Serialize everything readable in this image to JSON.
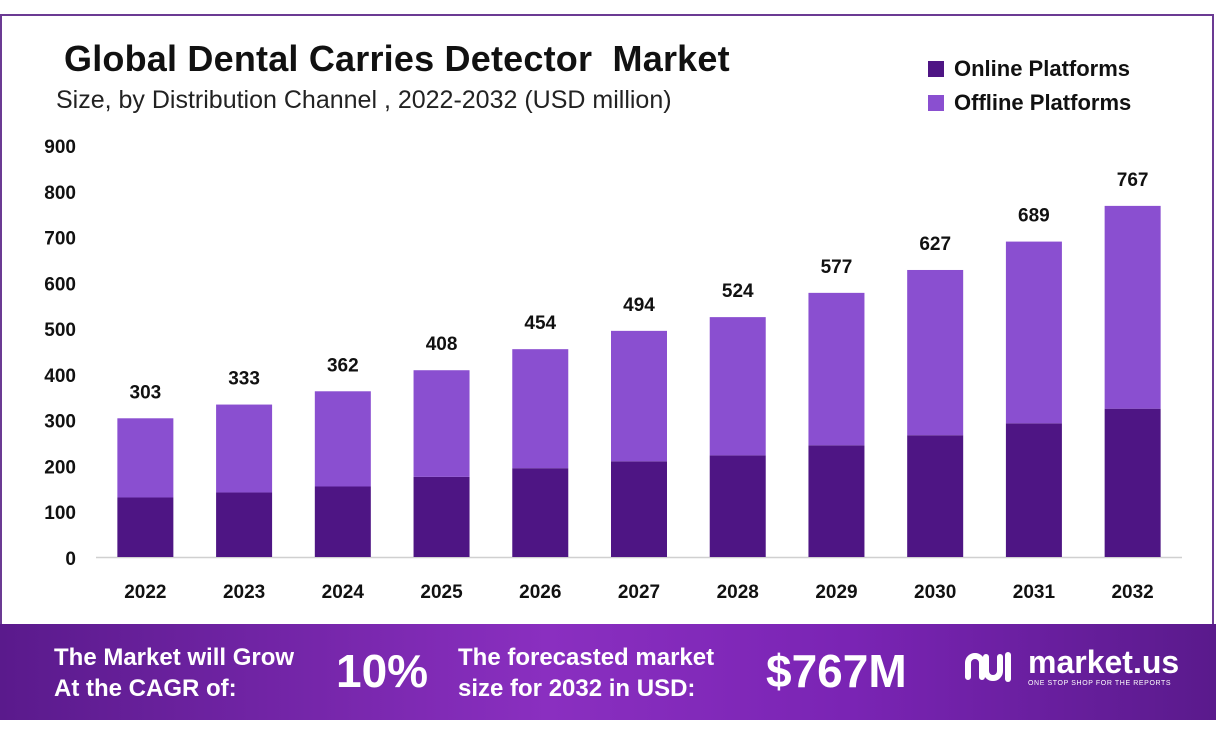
{
  "title": "Global Dental Carries Detector  Market",
  "subtitle": "Size, by Distribution Channel , 2022-2032 (USD million)",
  "colors": {
    "online": "#4e1584",
    "offline": "#8a4fd0",
    "frame": "#6b3a93"
  },
  "legend": [
    {
      "label": "Online Platforms",
      "color": "#4e1584"
    },
    {
      "label": "Offline Platforms",
      "color": "#8a4fd0"
    }
  ],
  "chart_data": {
    "type": "bar",
    "stacked": true,
    "title": "Global Dental Carries Detector  Market",
    "subtitle": "Size, by Distribution Channel , 2022-2032 (USD million)",
    "xlabel": "",
    "ylabel": "",
    "ylim": [
      0,
      900
    ],
    "yticks": [
      0,
      100,
      200,
      300,
      400,
      500,
      600,
      700,
      800,
      900
    ],
    "grid": false,
    "legend_position": "top-right",
    "categories": [
      "2022",
      "2023",
      "2024",
      "2025",
      "2026",
      "2027",
      "2028",
      "2029",
      "2030",
      "2031",
      "2032"
    ],
    "series": [
      {
        "name": "Online Platforms",
        "values": [
          130,
          141,
          154,
          175,
          194,
          209,
          222,
          244,
          266,
          292,
          324
        ]
      },
      {
        "name": "Offline Platforms",
        "values": [
          173,
          192,
          208,
          233,
          260,
          285,
          302,
          333,
          361,
          397,
          443
        ]
      }
    ],
    "totals": [
      303,
      333,
      362,
      408,
      454,
      494,
      524,
      577,
      627,
      689,
      767
    ]
  },
  "banner": {
    "cagr_text": "The Market will Grow\nAt the CAGR of:",
    "cagr_value": "10%",
    "forecast_text": "The forecasted market\nsize for 2032 in USD:",
    "forecast_value": "$767M",
    "logo_name": "market.us",
    "logo_tagline": "ONE STOP SHOP FOR THE REPORTS",
    "logo_icon": "market-us-logo-icon"
  }
}
